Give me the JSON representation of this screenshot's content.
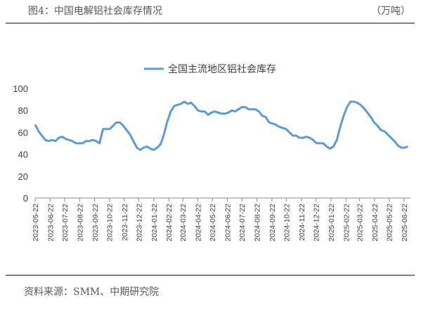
{
  "header": {
    "title": "图4：中国电解铝社会库存情况",
    "unit": "（万吨）"
  },
  "chart_data": {
    "type": "line",
    "x": [
      "2023-05-22",
      "2023-05-29",
      "2023-06-05",
      "2023-06-12",
      "2023-06-19",
      "2023-06-26",
      "2023-07-03",
      "2023-07-10",
      "2023-07-17",
      "2023-07-24",
      "2023-07-31",
      "2023-08-07",
      "2023-08-14",
      "2023-08-21",
      "2023-08-28",
      "2023-09-04",
      "2023-09-11",
      "2023-09-18",
      "2023-09-25",
      "2023-10-02",
      "2023-10-09",
      "2023-10-16",
      "2023-10-23",
      "2023-10-30",
      "2023-11-06",
      "2023-11-13",
      "2023-11-20",
      "2023-11-27",
      "2023-12-04",
      "2023-12-11",
      "2023-12-18",
      "2023-12-25",
      "2024-01-01",
      "2024-01-08",
      "2024-01-15",
      "2024-01-22",
      "2024-01-29",
      "2024-02-05",
      "2024-02-12",
      "2024-02-19",
      "2024-02-26",
      "2024-03-04",
      "2024-03-11",
      "2024-03-18",
      "2024-03-25",
      "2024-04-01",
      "2024-04-08",
      "2024-04-15",
      "2024-04-22",
      "2024-04-29",
      "2024-05-06",
      "2024-05-13",
      "2024-05-20",
      "2024-05-27",
      "2024-06-03",
      "2024-06-10",
      "2024-06-17",
      "2024-06-24",
      "2024-07-01",
      "2024-07-08",
      "2024-07-15",
      "2024-07-22",
      "2024-07-29",
      "2024-08-05",
      "2024-08-12",
      "2024-08-19",
      "2024-08-26",
      "2024-09-02",
      "2024-09-09",
      "2024-09-16",
      "2024-09-23",
      "2024-09-30",
      "2024-10-07",
      "2024-10-14",
      "2024-10-21",
      "2024-10-28",
      "2024-11-04",
      "2024-11-11",
      "2024-11-18",
      "2024-11-25",
      "2024-12-02",
      "2024-12-09",
      "2024-12-16",
      "2024-12-23",
      "2024-12-30",
      "2025-01-06",
      "2025-01-13",
      "2025-01-20",
      "2025-01-27",
      "2025-02-03",
      "2025-02-10",
      "2025-02-17",
      "2025-02-24",
      "2025-03-03",
      "2025-03-10",
      "2025-03-17",
      "2025-03-24",
      "2025-03-31",
      "2025-04-07",
      "2025-04-14",
      "2025-04-21",
      "2025-04-28",
      "2025-05-05",
      "2025-05-12",
      "2025-05-19",
      "2025-05-26",
      "2025-06-02",
      "2025-06-09",
      "2025-06-16",
      "2025-06-23",
      "2025-06-30"
    ],
    "series": [
      {
        "name": "全国主流地区铝社会库存",
        "color": "#5b9bd5",
        "values": [
          67,
          61,
          57,
          53,
          52,
          53,
          52,
          55,
          56,
          54,
          53,
          52,
          50,
          50,
          50,
          52,
          52,
          53,
          52,
          50,
          63,
          63,
          63,
          66,
          69,
          69,
          66,
          62,
          58,
          52,
          46,
          44,
          46,
          47,
          45,
          44,
          46,
          49,
          58,
          70,
          79,
          84,
          85,
          86,
          88,
          86,
          87,
          84,
          80,
          79,
          79,
          76,
          78,
          79,
          78,
          77,
          77,
          78,
          80,
          79,
          81,
          83,
          83,
          81,
          81,
          81,
          79,
          75,
          74,
          69,
          68,
          67,
          65,
          64,
          63,
          60,
          57,
          57,
          55,
          55,
          56,
          55,
          53,
          50,
          50,
          50,
          47,
          45,
          47,
          53,
          65,
          75,
          83,
          88,
          88,
          87,
          85,
          82,
          78,
          74,
          69,
          66,
          62,
          61,
          58,
          55,
          52,
          48,
          46,
          46,
          47
        ]
      }
    ],
    "xlim": [
      "2023-05-22",
      "2025-07-05"
    ],
    "xticks": [
      "2023-05-22",
      "2023-06-22",
      "2023-07-22",
      "2023-08-22",
      "2023-09-22",
      "2023-10-22",
      "2023-11-22",
      "2023-12-22",
      "2024-01-22",
      "2024-02-22",
      "2024-03-22",
      "2024-04-22",
      "2024-05-22",
      "2024-06-22",
      "2024-07-22",
      "2024-08-22",
      "2024-09-22",
      "2024-10-22",
      "2024-11-22",
      "2024-12-22",
      "2025-01-22",
      "2025-02-22",
      "2025-03-22",
      "2025-04-22",
      "2025-05-22",
      "2025-06-22"
    ],
    "ylim": [
      0,
      100
    ],
    "yticks": [
      0,
      20,
      40,
      60,
      80,
      100
    ],
    "grid": false
  },
  "footer": {
    "source": "资料来源：SMM、中期研究院"
  }
}
